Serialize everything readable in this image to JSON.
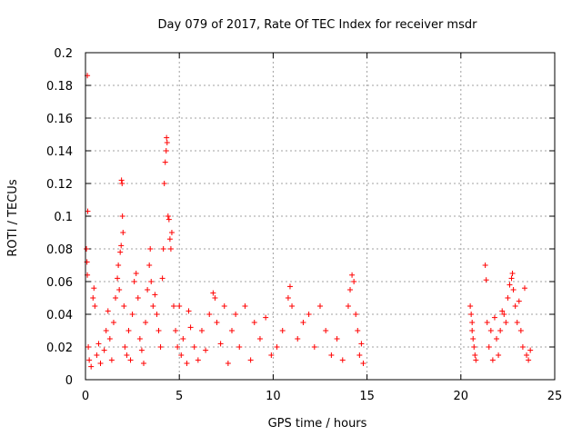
{
  "chart_data": {
    "type": "scatter",
    "title": "Day 079 of 2017, Rate Of TEC Index for receiver msdr",
    "xlabel": "GPS time / hours",
    "ylabel": "ROTI / TECUs",
    "xlim": [
      0,
      25
    ],
    "ylim": [
      0,
      0.2
    ],
    "grid": true,
    "marker": "+",
    "color": "#ff0000",
    "x_ticks": [
      0,
      5,
      10,
      15,
      20,
      25
    ],
    "x_tick_labels": [
      "0",
      "5",
      "10",
      "15",
      "20",
      "25"
    ],
    "y_ticks": [
      0,
      0.02,
      0.04,
      0.06,
      0.08,
      0.1,
      0.12,
      0.14,
      0.16,
      0.18,
      0.2
    ],
    "y_tick_labels": [
      "0",
      "0.02",
      "0.04",
      "0.06",
      "0.08",
      "0.1",
      "0.12",
      "0.14",
      "0.16",
      "0.18",
      "0.2"
    ],
    "series": [
      {
        "name": "ROTI",
        "points": [
          [
            0.1,
            0.186
          ],
          [
            0.12,
            0.103
          ],
          [
            0.05,
            0.08
          ],
          [
            0.08,
            0.072
          ],
          [
            0.1,
            0.064
          ],
          [
            0.15,
            0.02
          ],
          [
            0.2,
            0.012
          ],
          [
            0.3,
            0.008
          ],
          [
            0.4,
            0.05
          ],
          [
            0.45,
            0.056
          ],
          [
            0.5,
            0.045
          ],
          [
            0.6,
            0.015
          ],
          [
            0.7,
            0.022
          ],
          [
            0.8,
            0.01
          ],
          [
            1.0,
            0.018
          ],
          [
            1.1,
            0.03
          ],
          [
            1.2,
            0.042
          ],
          [
            1.3,
            0.025
          ],
          [
            1.4,
            0.012
          ],
          [
            1.5,
            0.035
          ],
          [
            1.6,
            0.05
          ],
          [
            1.7,
            0.062
          ],
          [
            1.75,
            0.07
          ],
          [
            1.8,
            0.055
          ],
          [
            1.85,
            0.078
          ],
          [
            1.9,
            0.082
          ],
          [
            1.92,
            0.122
          ],
          [
            1.95,
            0.12
          ],
          [
            1.97,
            0.1
          ],
          [
            2.0,
            0.09
          ],
          [
            2.05,
            0.045
          ],
          [
            2.1,
            0.02
          ],
          [
            2.2,
            0.015
          ],
          [
            2.3,
            0.03
          ],
          [
            2.4,
            0.012
          ],
          [
            2.5,
            0.04
          ],
          [
            2.6,
            0.06
          ],
          [
            2.7,
            0.065
          ],
          [
            2.8,
            0.05
          ],
          [
            2.9,
            0.025
          ],
          [
            3.0,
            0.018
          ],
          [
            3.1,
            0.01
          ],
          [
            3.2,
            0.035
          ],
          [
            3.3,
            0.055
          ],
          [
            3.4,
            0.07
          ],
          [
            3.45,
            0.08
          ],
          [
            3.5,
            0.06
          ],
          [
            3.6,
            0.045
          ],
          [
            3.7,
            0.052
          ],
          [
            3.8,
            0.04
          ],
          [
            3.9,
            0.03
          ],
          [
            4.0,
            0.02
          ],
          [
            4.1,
            0.062
          ],
          [
            4.15,
            0.08
          ],
          [
            4.2,
            0.12
          ],
          [
            4.25,
            0.133
          ],
          [
            4.3,
            0.14
          ],
          [
            4.32,
            0.148
          ],
          [
            4.35,
            0.145
          ],
          [
            4.4,
            0.1
          ],
          [
            4.45,
            0.098
          ],
          [
            4.5,
            0.086
          ],
          [
            4.55,
            0.08
          ],
          [
            4.6,
            0.09
          ],
          [
            4.7,
            0.045
          ],
          [
            4.8,
            0.03
          ],
          [
            4.9,
            0.02
          ],
          [
            5.0,
            0.045
          ],
          [
            5.1,
            0.015
          ],
          [
            5.2,
            0.025
          ],
          [
            5.4,
            0.01
          ],
          [
            5.5,
            0.042
          ],
          [
            5.6,
            0.032
          ],
          [
            5.8,
            0.02
          ],
          [
            6.0,
            0.012
          ],
          [
            6.2,
            0.03
          ],
          [
            6.4,
            0.018
          ],
          [
            6.6,
            0.04
          ],
          [
            6.8,
            0.053
          ],
          [
            6.9,
            0.05
          ],
          [
            7.0,
            0.035
          ],
          [
            7.2,
            0.022
          ],
          [
            7.4,
            0.045
          ],
          [
            7.6,
            0.01
          ],
          [
            7.8,
            0.03
          ],
          [
            8.0,
            0.04
          ],
          [
            8.2,
            0.02
          ],
          [
            8.5,
            0.045
          ],
          [
            8.8,
            0.012
          ],
          [
            9.0,
            0.035
          ],
          [
            9.3,
            0.025
          ],
          [
            9.6,
            0.038
          ],
          [
            9.9,
            0.015
          ],
          [
            10.2,
            0.02
          ],
          [
            10.5,
            0.03
          ],
          [
            10.8,
            0.05
          ],
          [
            10.9,
            0.057
          ],
          [
            11.0,
            0.045
          ],
          [
            11.3,
            0.025
          ],
          [
            11.6,
            0.035
          ],
          [
            11.9,
            0.04
          ],
          [
            12.2,
            0.02
          ],
          [
            12.5,
            0.045
          ],
          [
            12.8,
            0.03
          ],
          [
            13.1,
            0.015
          ],
          [
            13.4,
            0.025
          ],
          [
            13.7,
            0.012
          ],
          [
            14.0,
            0.045
          ],
          [
            14.1,
            0.055
          ],
          [
            14.2,
            0.064
          ],
          [
            14.3,
            0.06
          ],
          [
            14.4,
            0.04
          ],
          [
            14.5,
            0.03
          ],
          [
            14.6,
            0.015
          ],
          [
            14.7,
            0.022
          ],
          [
            14.8,
            0.01
          ],
          [
            20.5,
            0.045
          ],
          [
            20.55,
            0.04
          ],
          [
            20.6,
            0.035
          ],
          [
            20.65,
            0.025
          ],
          [
            20.7,
            0.02
          ],
          [
            20.75,
            0.015
          ],
          [
            20.8,
            0.012
          ],
          [
            20.6,
            0.03
          ],
          [
            21.3,
            0.07
          ],
          [
            21.35,
            0.061
          ],
          [
            21.4,
            0.035
          ],
          [
            21.5,
            0.02
          ],
          [
            21.6,
            0.03
          ],
          [
            21.7,
            0.012
          ],
          [
            21.8,
            0.038
          ],
          [
            21.9,
            0.025
          ],
          [
            22.0,
            0.015
          ],
          [
            22.1,
            0.03
          ],
          [
            22.2,
            0.042
          ],
          [
            22.3,
            0.04
          ],
          [
            22.4,
            0.035
          ],
          [
            22.5,
            0.05
          ],
          [
            22.6,
            0.058
          ],
          [
            22.7,
            0.062
          ],
          [
            22.75,
            0.065
          ],
          [
            22.8,
            0.055
          ],
          [
            22.9,
            0.045
          ],
          [
            23.0,
            0.035
          ],
          [
            23.1,
            0.048
          ],
          [
            23.2,
            0.03
          ],
          [
            23.3,
            0.02
          ],
          [
            23.4,
            0.056
          ],
          [
            23.5,
            0.015
          ],
          [
            23.6,
            0.012
          ],
          [
            23.7,
            0.018
          ]
        ]
      }
    ]
  }
}
